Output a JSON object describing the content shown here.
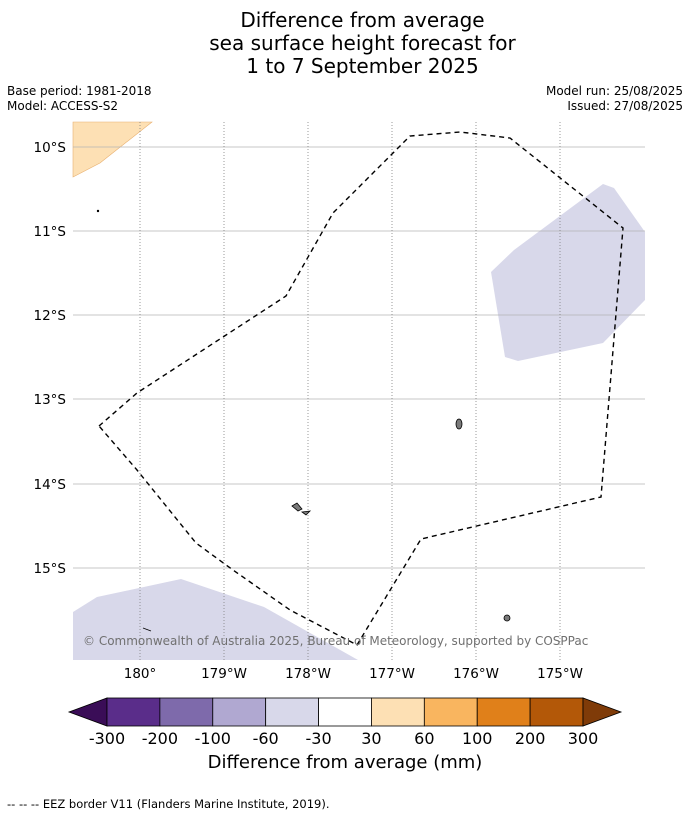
{
  "title": {
    "line1": "Difference from average",
    "line2": "sea surface height forecast for",
    "line3": "1 to 7 September 2025"
  },
  "meta": {
    "base_period": "Base period: 1981-2018",
    "model": "Model: ACCESS-S2",
    "model_run": "Model run: 25/08/2025",
    "issued": "Issued: 27/08/2025"
  },
  "map": {
    "lat_labels": [
      "10°S",
      "11°S",
      "12°S",
      "13°S",
      "14°S",
      "15°S"
    ],
    "lon_labels": [
      "180°",
      "179°W",
      "178°W",
      "177°W",
      "176°W",
      "175°W"
    ],
    "copyright": "© Commonwealth of Australia 2025, Bureau of Meteorology, supported by COSPPac"
  },
  "colorbar": {
    "ticks": [
      "-300",
      "-200",
      "-100",
      "-60",
      "-30",
      "30",
      "60",
      "100",
      "200",
      "300"
    ],
    "colors": [
      "#5a2d8a",
      "#7e6aab",
      "#b0a8d1",
      "#d8d8ea",
      "#ffffff",
      "#fde0b4",
      "#f9b55f",
      "#e0801a",
      "#b35808"
    ],
    "under_color": "#3a0d57",
    "over_color": "#7f3b08",
    "label": "Difference from average (mm)"
  },
  "footer": {
    "legend": "--  --  -- EEZ border V11 (Flanders Marine Institute, 2019)."
  }
}
